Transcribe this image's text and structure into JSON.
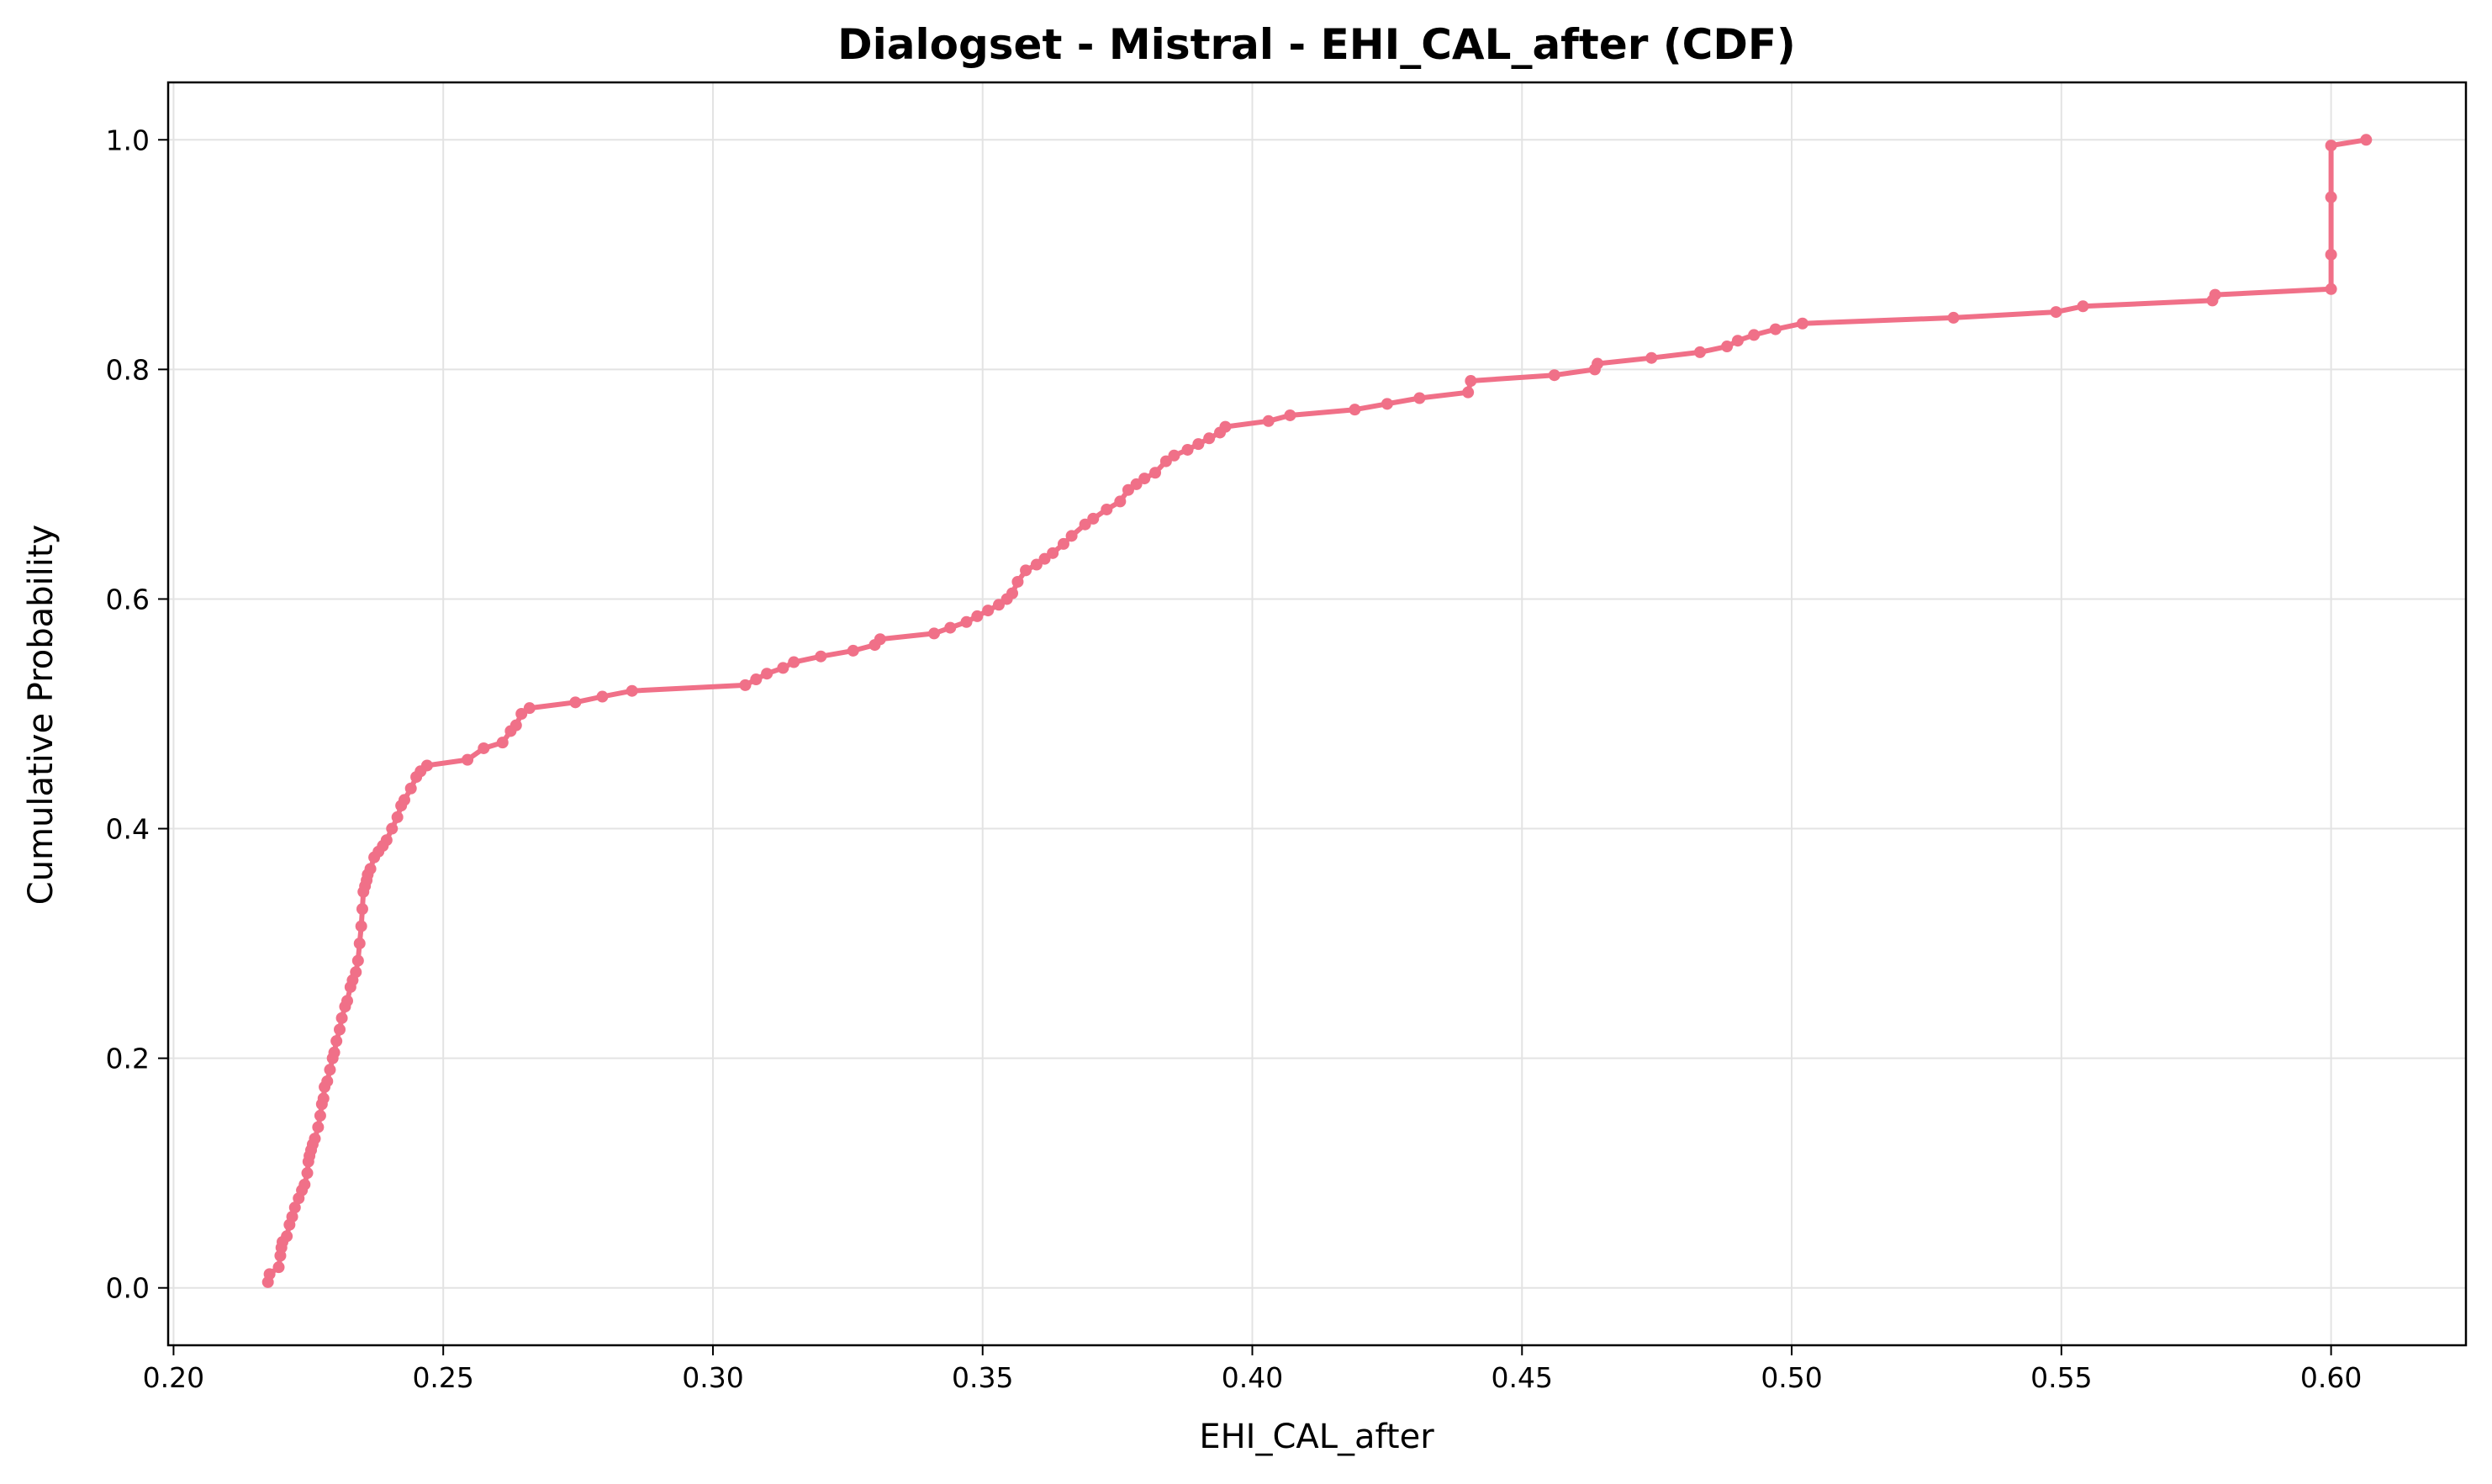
{
  "chart_data": {
    "type": "line",
    "title": "Dialogset - Mistral - EHI_CAL_after (CDF)",
    "xlabel": "EHI_CAL_after",
    "ylabel": "Cumulative Probability",
    "xlim": [
      0.199,
      0.625
    ],
    "ylim": [
      -0.05,
      1.05
    ],
    "xticks": [
      "0.20",
      "0.25",
      "0.30",
      "0.35",
      "0.40",
      "0.45",
      "0.50",
      "0.55",
      "0.60"
    ],
    "yticks": [
      "0.0",
      "0.2",
      "0.4",
      "0.6",
      "0.8",
      "1.0"
    ],
    "grid": true,
    "legend": "none",
    "series_color": "#f07088",
    "series": [
      {
        "x": [
          0.2175,
          0.2178,
          0.2195,
          0.2198,
          0.22,
          0.2202,
          0.221,
          0.2215,
          0.222,
          0.2225,
          0.2232,
          0.2238,
          0.2243,
          0.2248,
          0.225,
          0.2252,
          0.2255,
          0.2258,
          0.2262,
          0.2268,
          0.2272,
          0.2275,
          0.2278,
          0.228,
          0.2285,
          0.229,
          0.2295,
          0.2298,
          0.2302,
          0.2308,
          0.2312,
          0.2318,
          0.2322,
          0.2328,
          0.2332,
          0.2338,
          0.2342,
          0.2345,
          0.2348,
          0.235,
          0.2352,
          0.2355,
          0.2358,
          0.236,
          0.2365,
          0.2372,
          0.238,
          0.2388,
          0.2395,
          0.2405,
          0.2415,
          0.2422,
          0.2428,
          0.244,
          0.245,
          0.2458,
          0.247,
          0.2545,
          0.2575,
          0.261,
          0.2625,
          0.2635,
          0.2645,
          0.266,
          0.2745,
          0.2795,
          0.285,
          0.306,
          0.308,
          0.31,
          0.313,
          0.315,
          0.32,
          0.326,
          0.33,
          0.331,
          0.341,
          0.344,
          0.347,
          0.349,
          0.351,
          0.353,
          0.3545,
          0.3555,
          0.3565,
          0.358,
          0.36,
          0.3615,
          0.363,
          0.365,
          0.3665,
          0.369,
          0.3705,
          0.373,
          0.3755,
          0.377,
          0.3785,
          0.38,
          0.382,
          0.384,
          0.3855,
          0.388,
          0.39,
          0.392,
          0.394,
          0.395,
          0.403,
          0.407,
          0.419,
          0.425,
          0.431,
          0.44,
          0.4405,
          0.456,
          0.4635,
          0.464,
          0.474,
          0.483,
          0.488,
          0.49,
          0.493,
          0.497,
          0.502,
          0.53,
          0.549,
          0.554,
          0.578,
          0.5785,
          0.6,
          0.6,
          0.6,
          0.6,
          0.6065
        ],
        "y": [
          0.005,
          0.012,
          0.018,
          0.028,
          0.035,
          0.04,
          0.045,
          0.055,
          0.062,
          0.07,
          0.078,
          0.085,
          0.09,
          0.1,
          0.11,
          0.115,
          0.12,
          0.125,
          0.13,
          0.14,
          0.15,
          0.16,
          0.165,
          0.175,
          0.18,
          0.19,
          0.2,
          0.205,
          0.215,
          0.225,
          0.235,
          0.245,
          0.25,
          0.262,
          0.268,
          0.275,
          0.285,
          0.3,
          0.315,
          0.33,
          0.345,
          0.35,
          0.355,
          0.36,
          0.365,
          0.375,
          0.38,
          0.385,
          0.39,
          0.4,
          0.41,
          0.42,
          0.425,
          0.435,
          0.445,
          0.45,
          0.455,
          0.46,
          0.47,
          0.475,
          0.485,
          0.49,
          0.5,
          0.505,
          0.51,
          0.515,
          0.52,
          0.525,
          0.53,
          0.535,
          0.54,
          0.545,
          0.55,
          0.555,
          0.56,
          0.565,
          0.57,
          0.575,
          0.58,
          0.585,
          0.59,
          0.595,
          0.6,
          0.605,
          0.615,
          0.625,
          0.63,
          0.635,
          0.64,
          0.648,
          0.655,
          0.665,
          0.67,
          0.678,
          0.685,
          0.695,
          0.7,
          0.705,
          0.71,
          0.72,
          0.725,
          0.73,
          0.735,
          0.74,
          0.745,
          0.75,
          0.755,
          0.76,
          0.765,
          0.77,
          0.775,
          0.78,
          0.79,
          0.795,
          0.8,
          0.805,
          0.81,
          0.815,
          0.82,
          0.825,
          0.83,
          0.835,
          0.84,
          0.845,
          0.85,
          0.855,
          0.86,
          0.865,
          0.87,
          0.9,
          0.95,
          0.995,
          1.0
        ]
      }
    ]
  }
}
